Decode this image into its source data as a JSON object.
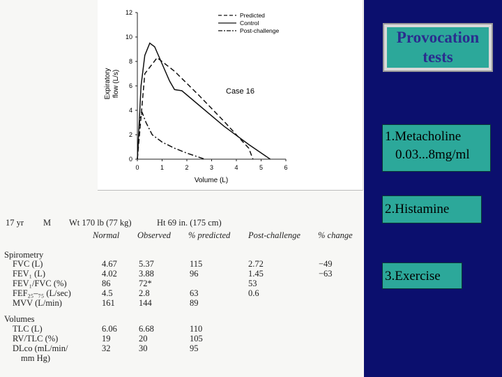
{
  "slide": {
    "title_line1": "Provocation",
    "title_line2": "tests",
    "items": [
      {
        "line1": "1.Metacholine",
        "line2": "0.03...8mg/ml"
      },
      {
        "line1": "2.Histamine"
      },
      {
        "line1": "3.Exercise"
      }
    ],
    "colors": {
      "background": "#0b0f6e",
      "box": "#2ca89a",
      "title_text": "#2a2d8e"
    }
  },
  "chart_data": {
    "type": "line",
    "xlabel": "Volume (L)",
    "ylabel_line1": "Expiratory",
    "ylabel_line2": "flow (L/s)",
    "annotation": "Case 16",
    "xlim": [
      0,
      6
    ],
    "ylim": [
      0,
      12
    ],
    "x_ticks": [
      "0",
      "1",
      "2",
      "3",
      "4",
      "5",
      "6"
    ],
    "y_ticks": [
      "0",
      "2",
      "4",
      "6",
      "8",
      "10",
      "12"
    ],
    "legend_position": "top-right",
    "series": [
      {
        "name": "Predicted",
        "style": "dashed",
        "points": [
          [
            0,
            0
          ],
          [
            0.3,
            7.0
          ],
          [
            0.8,
            8.3
          ],
          [
            1.5,
            7.2
          ],
          [
            2.5,
            5.2
          ],
          [
            3.5,
            3.1
          ],
          [
            4.5,
            0.9
          ],
          [
            4.67,
            0
          ]
        ]
      },
      {
        "name": "Control",
        "style": "solid",
        "points": [
          [
            0,
            0
          ],
          [
            0.15,
            6.0
          ],
          [
            0.3,
            8.5
          ],
          [
            0.5,
            9.5
          ],
          [
            0.7,
            9.2
          ],
          [
            1.0,
            7.8
          ],
          [
            1.3,
            6.4
          ],
          [
            1.5,
            5.7
          ],
          [
            1.8,
            5.6
          ],
          [
            2.5,
            4.4
          ],
          [
            3.5,
            2.7
          ],
          [
            4.5,
            1.2
          ],
          [
            5.37,
            0
          ]
        ]
      },
      {
        "name": "Post-challenge",
        "style": "dash-dot",
        "points": [
          [
            0,
            0
          ],
          [
            0.1,
            3.3
          ],
          [
            0.2,
            3.8
          ],
          [
            0.35,
            3.0
          ],
          [
            0.6,
            2.0
          ],
          [
            1.0,
            1.4
          ],
          [
            1.5,
            0.9
          ],
          [
            2.0,
            0.5
          ],
          [
            2.72,
            0
          ]
        ]
      }
    ]
  },
  "patient": {
    "age": "17 yr",
    "sex": "M",
    "weight": "Wt 170 lb (77 kg)",
    "height": "Ht 69 in. (175 cm)"
  },
  "table": {
    "headers": [
      "Normal",
      "Observed",
      "% predicted",
      "Post-challenge",
      "% change"
    ],
    "section_spirometry": "Spirometry",
    "section_volumes": "Volumes",
    "rows": [
      {
        "label": "FVC (L)",
        "normal": "4.67",
        "observed": "5.37",
        "pct": "115",
        "post": "2.72",
        "change": "−49"
      },
      {
        "label": "FEV₁ (L)",
        "normal": "4.02",
        "observed": "3.88",
        "pct": "96",
        "post": "1.45",
        "change": "−63"
      },
      {
        "label": "FEV₁/FVC (%)",
        "normal": "86",
        "observed": "72*",
        "pct": "",
        "post": "53",
        "change": ""
      },
      {
        "label": "FEF₂₅–₇₅ (L/sec)",
        "normal": "4.5",
        "observed": "2.8",
        "pct": "63",
        "post": "0.6",
        "change": ""
      },
      {
        "label": "MVV (L/min)",
        "normal": "161",
        "observed": "144",
        "pct": "89",
        "post": "",
        "change": ""
      },
      {
        "label": "TLC (L)",
        "normal": "6.06",
        "observed": "6.68",
        "pct": "110",
        "post": "",
        "change": ""
      },
      {
        "label": "RV/TLC (%)",
        "normal": "19",
        "observed": "20",
        "pct": "105",
        "post": "",
        "change": ""
      },
      {
        "label": "DLco (mL/min/",
        "normal": "32",
        "observed": "30",
        "pct": "95",
        "post": "",
        "change": ""
      },
      {
        "label": "mm Hg)",
        "normal": "",
        "observed": "",
        "pct": "",
        "post": "",
        "change": ""
      }
    ]
  }
}
